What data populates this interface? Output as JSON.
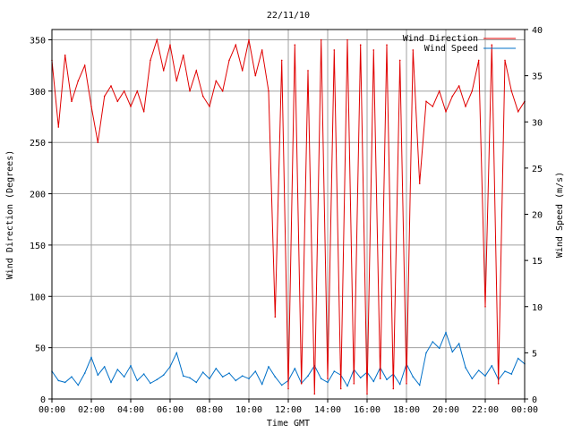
{
  "chart_data": {
    "type": "line",
    "title": "22/11/10",
    "xlabel": "Time GMT",
    "ylabel": "Wind Direction (Degrees)",
    "y2label": "Wind Speed (m/s)",
    "xlim": [
      "00:00",
      "24:00"
    ],
    "ylim": [
      0,
      360
    ],
    "y2lim": [
      0,
      40
    ],
    "grid": true,
    "legend_position": "top-right",
    "x_ticks": [
      "00:00",
      "02:00",
      "04:00",
      "06:00",
      "08:00",
      "10:00",
      "12:00",
      "14:00",
      "16:00",
      "18:00",
      "20:00",
      "22:00",
      "00:00"
    ],
    "y_ticks": [
      "0",
      "50",
      "100",
      "150",
      "200",
      "250",
      "300",
      "350"
    ],
    "y2_ticks": [
      "0",
      "5",
      "10",
      "15",
      "20",
      "25",
      "30",
      "35",
      "40"
    ],
    "colors": {
      "Wind Direction": "#e00000",
      "Wind Speed": "#0070c8",
      "grid": "#a0a0a0"
    },
    "series": [
      {
        "name": "Wind Direction",
        "axis": "left",
        "points": [
          [
            "00:00",
            330
          ],
          [
            "00:20",
            265
          ],
          [
            "00:40",
            335
          ],
          [
            "01:00",
            290
          ],
          [
            "01:20",
            310
          ],
          [
            "01:40",
            325
          ],
          [
            "02:00",
            285
          ],
          [
            "02:20",
            250
          ],
          [
            "02:40",
            295
          ],
          [
            "03:00",
            305
          ],
          [
            "03:20",
            290
          ],
          [
            "03:40",
            300
          ],
          [
            "04:00",
            285
          ],
          [
            "04:20",
            300
          ],
          [
            "04:40",
            280
          ],
          [
            "05:00",
            330
          ],
          [
            "05:20",
            350
          ],
          [
            "05:40",
            320
          ],
          [
            "06:00",
            345
          ],
          [
            "06:20",
            310
          ],
          [
            "06:40",
            335
          ],
          [
            "07:00",
            300
          ],
          [
            "07:20",
            320
          ],
          [
            "07:40",
            295
          ],
          [
            "08:00",
            285
          ],
          [
            "08:20",
            310
          ],
          [
            "08:40",
            300
          ],
          [
            "09:00",
            330
          ],
          [
            "09:20",
            345
          ],
          [
            "09:40",
            320
          ],
          [
            "10:00",
            350
          ],
          [
            "10:20",
            315
          ],
          [
            "10:40",
            340
          ],
          [
            "11:00",
            300
          ],
          [
            "11:20",
            80
          ],
          [
            "11:40",
            330
          ],
          [
            "12:00",
            10
          ],
          [
            "12:20",
            345
          ],
          [
            "12:40",
            15
          ],
          [
            "13:00",
            320
          ],
          [
            "13:20",
            5
          ],
          [
            "13:40",
            350
          ],
          [
            "14:00",
            20
          ],
          [
            "14:20",
            340
          ],
          [
            "14:40",
            10
          ],
          [
            "15:00",
            350
          ],
          [
            "15:20",
            15
          ],
          [
            "15:40",
            345
          ],
          [
            "16:00",
            5
          ],
          [
            "16:20",
            340
          ],
          [
            "16:40",
            20
          ],
          [
            "17:00",
            345
          ],
          [
            "17:20",
            10
          ],
          [
            "17:40",
            330
          ],
          [
            "18:00",
            15
          ],
          [
            "18:20",
            340
          ],
          [
            "18:40",
            210
          ],
          [
            "19:00",
            290
          ],
          [
            "19:20",
            285
          ],
          [
            "19:40",
            300
          ],
          [
            "20:00",
            280
          ],
          [
            "20:20",
            295
          ],
          [
            "20:40",
            305
          ],
          [
            "21:00",
            285
          ],
          [
            "21:20",
            300
          ],
          [
            "21:40",
            330
          ],
          [
            "22:00",
            90
          ],
          [
            "22:20",
            345
          ],
          [
            "22:40",
            15
          ],
          [
            "23:00",
            330
          ],
          [
            "23:20",
            300
          ],
          [
            "23:40",
            280
          ],
          [
            "24:00",
            290
          ]
        ]
      },
      {
        "name": "Wind Speed",
        "axis": "right",
        "points": [
          [
            "00:00",
            3.0
          ],
          [
            "00:20",
            2.0
          ],
          [
            "00:40",
            1.8
          ],
          [
            "01:00",
            2.4
          ],
          [
            "01:20",
            1.5
          ],
          [
            "01:40",
            2.8
          ],
          [
            "02:00",
            4.5
          ],
          [
            "02:20",
            2.6
          ],
          [
            "02:40",
            3.5
          ],
          [
            "03:00",
            1.8
          ],
          [
            "03:20",
            3.2
          ],
          [
            "03:40",
            2.4
          ],
          [
            "04:00",
            3.6
          ],
          [
            "04:20",
            2.0
          ],
          [
            "04:40",
            2.7
          ],
          [
            "05:00",
            1.7
          ],
          [
            "05:20",
            2.1
          ],
          [
            "05:40",
            2.6
          ],
          [
            "06:00",
            3.5
          ],
          [
            "06:20",
            5.0
          ],
          [
            "06:40",
            2.5
          ],
          [
            "07:00",
            2.3
          ],
          [
            "07:20",
            1.8
          ],
          [
            "07:40",
            2.9
          ],
          [
            "08:00",
            2.2
          ],
          [
            "08:20",
            3.3
          ],
          [
            "08:40",
            2.4
          ],
          [
            "09:00",
            2.8
          ],
          [
            "09:20",
            2.0
          ],
          [
            "09:40",
            2.5
          ],
          [
            "10:00",
            2.2
          ],
          [
            "10:20",
            3.0
          ],
          [
            "10:40",
            1.6
          ],
          [
            "11:00",
            3.5
          ],
          [
            "11:20",
            2.4
          ],
          [
            "11:40",
            1.5
          ],
          [
            "12:00",
            2.0
          ],
          [
            "12:20",
            3.3
          ],
          [
            "12:40",
            1.7
          ],
          [
            "13:00",
            2.5
          ],
          [
            "13:20",
            3.6
          ],
          [
            "13:40",
            2.2
          ],
          [
            "14:00",
            1.8
          ],
          [
            "14:20",
            3.0
          ],
          [
            "14:40",
            2.6
          ],
          [
            "15:00",
            1.4
          ],
          [
            "15:20",
            3.2
          ],
          [
            "15:40",
            2.3
          ],
          [
            "16:00",
            2.9
          ],
          [
            "16:20",
            1.9
          ],
          [
            "16:40",
            3.4
          ],
          [
            "17:00",
            2.1
          ],
          [
            "17:20",
            2.7
          ],
          [
            "17:40",
            1.6
          ],
          [
            "18:00",
            3.8
          ],
          [
            "18:20",
            2.4
          ],
          [
            "18:40",
            1.5
          ],
          [
            "19:00",
            5.0
          ],
          [
            "19:20",
            6.2
          ],
          [
            "19:40",
            5.5
          ],
          [
            "20:00",
            7.2
          ],
          [
            "20:20",
            5.1
          ],
          [
            "20:40",
            6.0
          ],
          [
            "21:00",
            3.4
          ],
          [
            "21:20",
            2.2
          ],
          [
            "21:40",
            3.1
          ],
          [
            "22:00",
            2.5
          ],
          [
            "22:20",
            3.6
          ],
          [
            "22:40",
            2.1
          ],
          [
            "23:00",
            3.0
          ],
          [
            "23:20",
            2.7
          ],
          [
            "23:40",
            4.4
          ],
          [
            "24:00",
            3.8
          ]
        ]
      }
    ]
  }
}
